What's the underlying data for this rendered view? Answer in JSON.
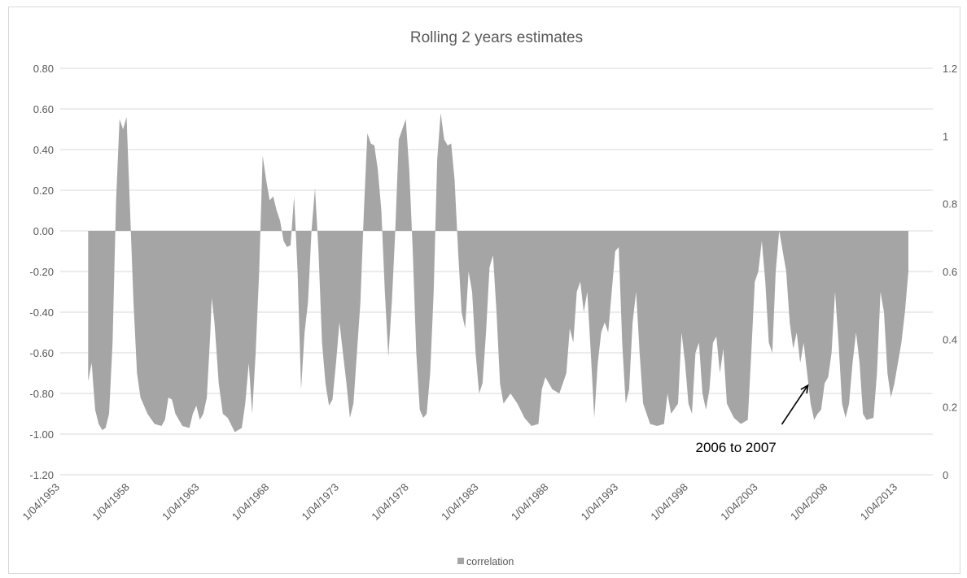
{
  "chart_data": {
    "type": "area",
    "title": "Rolling 2 years estimates",
    "xlabel": "",
    "ylabel": "",
    "x_ticks": [
      "1/04/1953",
      "1/04/1958",
      "1/04/1963",
      "1/04/1968",
      "1/04/1973",
      "1/04/1978",
      "1/04/1983",
      "1/04/1988",
      "1/04/1993",
      "1/04/1998",
      "1/04/2003",
      "1/04/2008",
      "1/04/2013"
    ],
    "x_range_years": [
      1953.25,
      2015.75
    ],
    "y_left": {
      "ticks": [
        "0.80",
        "0.60",
        "0.40",
        "0.20",
        "0.00",
        "-0.20",
        "-0.40",
        "-0.60",
        "-0.80",
        "-1.00",
        "-1.20"
      ],
      "range": [
        -1.2,
        0.8
      ]
    },
    "y_right": {
      "ticks": [
        "1.2",
        "1",
        "0.8",
        "0.6",
        "0.4",
        "0.2",
        "0"
      ],
      "range": [
        0,
        1.2
      ]
    },
    "grid": true,
    "legend_position": "bottom",
    "series": [
      {
        "name": "correlation",
        "color": "#a5a5a5",
        "points": [
          [
            1955.25,
            -0.74
          ],
          [
            1955.5,
            -0.65
          ],
          [
            1955.75,
            -0.88
          ],
          [
            1956.0,
            -0.95
          ],
          [
            1956.25,
            -0.98
          ],
          [
            1956.5,
            -0.97
          ],
          [
            1956.75,
            -0.9
          ],
          [
            1957.0,
            -0.55
          ],
          [
            1957.25,
            0.15
          ],
          [
            1957.5,
            0.55
          ],
          [
            1957.75,
            0.5
          ],
          [
            1958.0,
            0.56
          ],
          [
            1958.25,
            0.1
          ],
          [
            1958.5,
            -0.35
          ],
          [
            1958.75,
            -0.7
          ],
          [
            1959.0,
            -0.82
          ],
          [
            1959.5,
            -0.9
          ],
          [
            1960.0,
            -0.95
          ],
          [
            1960.5,
            -0.96
          ],
          [
            1960.75,
            -0.93
          ],
          [
            1961.0,
            -0.82
          ],
          [
            1961.25,
            -0.83
          ],
          [
            1961.5,
            -0.9
          ],
          [
            1962.0,
            -0.96
          ],
          [
            1962.5,
            -0.97
          ],
          [
            1962.75,
            -0.9
          ],
          [
            1963.0,
            -0.86
          ],
          [
            1963.25,
            -0.93
          ],
          [
            1963.5,
            -0.9
          ],
          [
            1963.75,
            -0.82
          ],
          [
            1964.0,
            -0.5
          ],
          [
            1964.1,
            -0.33
          ],
          [
            1964.3,
            -0.45
          ],
          [
            1964.6,
            -0.75
          ],
          [
            1964.9,
            -0.9
          ],
          [
            1965.25,
            -0.92
          ],
          [
            1965.75,
            -0.99
          ],
          [
            1966.25,
            -0.97
          ],
          [
            1966.5,
            -0.85
          ],
          [
            1966.75,
            -0.65
          ],
          [
            1967.0,
            -0.9
          ],
          [
            1967.25,
            -0.6
          ],
          [
            1967.5,
            -0.2
          ],
          [
            1967.75,
            0.37
          ],
          [
            1968.0,
            0.25
          ],
          [
            1968.25,
            0.15
          ],
          [
            1968.5,
            0.17
          ],
          [
            1968.75,
            0.1
          ],
          [
            1969.0,
            0.05
          ],
          [
            1969.25,
            -0.05
          ],
          [
            1969.5,
            -0.08
          ],
          [
            1969.75,
            -0.07
          ],
          [
            1970.0,
            0.17
          ],
          [
            1970.25,
            -0.2
          ],
          [
            1970.5,
            -0.78
          ],
          [
            1970.75,
            -0.5
          ],
          [
            1971.0,
            -0.35
          ],
          [
            1971.25,
            0.0
          ],
          [
            1971.5,
            0.21
          ],
          [
            1971.75,
            -0.1
          ],
          [
            1972.0,
            -0.55
          ],
          [
            1972.25,
            -0.75
          ],
          [
            1972.5,
            -0.86
          ],
          [
            1972.75,
            -0.83
          ],
          [
            1973.0,
            -0.65
          ],
          [
            1973.25,
            -0.45
          ],
          [
            1973.5,
            -0.6
          ],
          [
            1973.75,
            -0.75
          ],
          [
            1974.0,
            -0.92
          ],
          [
            1974.25,
            -0.85
          ],
          [
            1974.5,
            -0.6
          ],
          [
            1974.75,
            -0.35
          ],
          [
            1975.0,
            0.1
          ],
          [
            1975.25,
            0.48
          ],
          [
            1975.5,
            0.43
          ],
          [
            1975.75,
            0.42
          ],
          [
            1976.0,
            0.3
          ],
          [
            1976.25,
            0.1
          ],
          [
            1976.5,
            -0.3
          ],
          [
            1976.75,
            -0.62
          ],
          [
            1977.0,
            -0.35
          ],
          [
            1977.25,
            0.0
          ],
          [
            1977.5,
            0.45
          ],
          [
            1977.75,
            0.5
          ],
          [
            1978.0,
            0.55
          ],
          [
            1978.25,
            0.3
          ],
          [
            1978.5,
            -0.1
          ],
          [
            1978.75,
            -0.6
          ],
          [
            1979.0,
            -0.88
          ],
          [
            1979.25,
            -0.92
          ],
          [
            1979.5,
            -0.9
          ],
          [
            1979.75,
            -0.7
          ],
          [
            1980.0,
            -0.3
          ],
          [
            1980.25,
            0.35
          ],
          [
            1980.5,
            0.58
          ],
          [
            1980.75,
            0.45
          ],
          [
            1981.0,
            0.42
          ],
          [
            1981.25,
            0.43
          ],
          [
            1981.5,
            0.25
          ],
          [
            1981.75,
            -0.1
          ],
          [
            1982.0,
            -0.4
          ],
          [
            1982.25,
            -0.48
          ],
          [
            1982.5,
            -0.2
          ],
          [
            1982.75,
            -0.3
          ],
          [
            1983.0,
            -0.6
          ],
          [
            1983.25,
            -0.8
          ],
          [
            1983.5,
            -0.75
          ],
          [
            1983.75,
            -0.5
          ],
          [
            1984.0,
            -0.18
          ],
          [
            1984.25,
            -0.12
          ],
          [
            1984.5,
            -0.4
          ],
          [
            1984.75,
            -0.75
          ],
          [
            1985.0,
            -0.85
          ],
          [
            1985.5,
            -0.8
          ],
          [
            1986.0,
            -0.85
          ],
          [
            1986.5,
            -0.92
          ],
          [
            1987.0,
            -0.96
          ],
          [
            1987.5,
            -0.95
          ],
          [
            1987.75,
            -0.78
          ],
          [
            1988.0,
            -0.72
          ],
          [
            1988.5,
            -0.78
          ],
          [
            1989.0,
            -0.8
          ],
          [
            1989.5,
            -0.7
          ],
          [
            1989.75,
            -0.48
          ],
          [
            1990.0,
            -0.55
          ],
          [
            1990.25,
            -0.3
          ],
          [
            1990.5,
            -0.25
          ],
          [
            1990.75,
            -0.4
          ],
          [
            1991.0,
            -0.3
          ],
          [
            1991.25,
            -0.6
          ],
          [
            1991.5,
            -0.92
          ],
          [
            1991.75,
            -0.65
          ],
          [
            1992.0,
            -0.5
          ],
          [
            1992.25,
            -0.45
          ],
          [
            1992.5,
            -0.5
          ],
          [
            1992.75,
            -0.3
          ],
          [
            1993.0,
            -0.1
          ],
          [
            1993.25,
            -0.08
          ],
          [
            1993.5,
            -0.55
          ],
          [
            1993.75,
            -0.85
          ],
          [
            1994.0,
            -0.78
          ],
          [
            1994.25,
            -0.45
          ],
          [
            1994.5,
            -0.3
          ],
          [
            1994.75,
            -0.6
          ],
          [
            1995.0,
            -0.85
          ],
          [
            1995.5,
            -0.95
          ],
          [
            1996.0,
            -0.96
          ],
          [
            1996.5,
            -0.95
          ],
          [
            1996.75,
            -0.8
          ],
          [
            1997.0,
            -0.9
          ],
          [
            1997.5,
            -0.85
          ],
          [
            1997.75,
            -0.5
          ],
          [
            1998.0,
            -0.65
          ],
          [
            1998.25,
            -0.85
          ],
          [
            1998.5,
            -0.9
          ],
          [
            1998.75,
            -0.6
          ],
          [
            1999.0,
            -0.55
          ],
          [
            1999.25,
            -0.8
          ],
          [
            1999.5,
            -0.88
          ],
          [
            1999.75,
            -0.78
          ],
          [
            2000.0,
            -0.55
          ],
          [
            2000.25,
            -0.52
          ],
          [
            2000.5,
            -0.7
          ],
          [
            2000.75,
            -0.58
          ],
          [
            2001.0,
            -0.85
          ],
          [
            2001.5,
            -0.92
          ],
          [
            2002.0,
            -0.95
          ],
          [
            2002.5,
            -0.93
          ],
          [
            2002.75,
            -0.6
          ],
          [
            2003.0,
            -0.25
          ],
          [
            2003.25,
            -0.2
          ],
          [
            2003.5,
            -0.05
          ],
          [
            2003.75,
            -0.25
          ],
          [
            2004.0,
            -0.55
          ],
          [
            2004.25,
            -0.6
          ],
          [
            2004.5,
            -0.2
          ],
          [
            2004.75,
            0.0
          ],
          [
            2005.0,
            -0.1
          ],
          [
            2005.25,
            -0.2
          ],
          [
            2005.5,
            -0.45
          ],
          [
            2005.75,
            -0.58
          ],
          [
            2006.0,
            -0.5
          ],
          [
            2006.25,
            -0.65
          ],
          [
            2006.5,
            -0.55
          ],
          [
            2006.75,
            -0.7
          ],
          [
            2007.0,
            -0.85
          ],
          [
            2007.25,
            -0.93
          ],
          [
            2007.5,
            -0.9
          ],
          [
            2007.75,
            -0.88
          ],
          [
            2008.0,
            -0.75
          ],
          [
            2008.25,
            -0.72
          ],
          [
            2008.5,
            -0.6
          ],
          [
            2008.75,
            -0.3
          ],
          [
            2009.0,
            -0.55
          ],
          [
            2009.25,
            -0.85
          ],
          [
            2009.5,
            -0.92
          ],
          [
            2009.75,
            -0.85
          ],
          [
            2010.0,
            -0.65
          ],
          [
            2010.25,
            -0.5
          ],
          [
            2010.5,
            -0.65
          ],
          [
            2010.75,
            -0.9
          ],
          [
            2011.0,
            -0.93
          ],
          [
            2011.5,
            -0.92
          ],
          [
            2011.75,
            -0.7
          ],
          [
            2012.0,
            -0.3
          ],
          [
            2012.25,
            -0.4
          ],
          [
            2012.5,
            -0.7
          ],
          [
            2012.75,
            -0.82
          ],
          [
            2013.0,
            -0.75
          ],
          [
            2013.25,
            -0.65
          ],
          [
            2013.5,
            -0.55
          ],
          [
            2013.75,
            -0.4
          ],
          [
            2014.0,
            -0.2
          ]
        ]
      }
    ],
    "annotations": [
      {
        "text": "2006 to 2007",
        "arrow_to": [
          2006.8,
          -0.76
        ]
      }
    ]
  }
}
